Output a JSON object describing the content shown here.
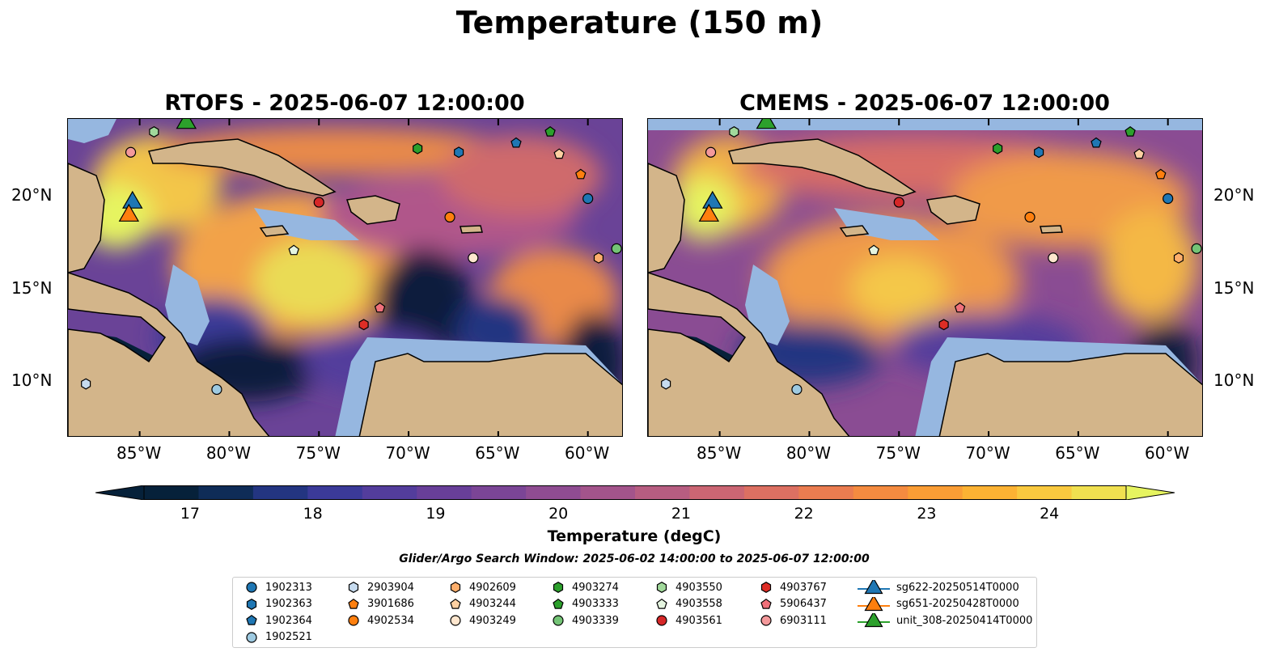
{
  "figure": {
    "title": "Temperature (150 m)",
    "search_window": "Glider/Argo Search Window: 2025-06-02 14:00:00 to 2025-06-07 12:00:00"
  },
  "panels": [
    {
      "id": "rtofs",
      "title": "RTOFS - 2025-06-07 12:00:00"
    },
    {
      "id": "cmems",
      "title": "CMEMS - 2025-06-07 12:00:00"
    }
  ],
  "axes": {
    "lon_ticks": [
      "85°W",
      "80°W",
      "75°W",
      "70°W",
      "65°W",
      "60°W"
    ],
    "lon_values": [
      -85,
      -80,
      -75,
      -70,
      -65,
      -60
    ],
    "lat_ticks": [
      "10°N",
      "15°N",
      "20°N"
    ],
    "lat_values": [
      10,
      15,
      20
    ],
    "lon_range": [
      -89,
      -58
    ],
    "lat_range": [
      7,
      24.2
    ]
  },
  "colorbar": {
    "label": "Temperature (degC)",
    "ticks": [
      "17",
      "18",
      "19",
      "20",
      "21",
      "22",
      "23",
      "24"
    ],
    "tick_values": [
      17,
      18,
      19,
      20,
      21,
      22,
      23,
      24
    ],
    "range": [
      16.6,
      24.6
    ],
    "extend": "both",
    "colors": [
      "#06213a",
      "#0f2c57",
      "#233581",
      "#3b3a99",
      "#533d9c",
      "#683f99",
      "#7b4596",
      "#8f4c92",
      "#a3548b",
      "#b75d81",
      "#cb6673",
      "#dc7062",
      "#ea7c50",
      "#f48b40",
      "#fa9d35",
      "#fcb233",
      "#f9c93f",
      "#f0e050",
      "#e6f460"
    ]
  },
  "map_colors": {
    "land": "#d3b58a",
    "shallow": "#96b7e0",
    "deep_cold": "#06213a"
  },
  "legend": {
    "columns": [
      [
        {
          "label": "1902313",
          "marker": "circle",
          "color": "#1f77b4"
        },
        {
          "label": "1902363",
          "marker": "hexagon",
          "color": "#1f77b4"
        },
        {
          "label": "1902364",
          "marker": "pentagon",
          "color": "#1f77b4"
        },
        {
          "label": "1902521",
          "marker": "circle",
          "color": "#9ecae1"
        }
      ],
      [
        {
          "label": "2903904",
          "marker": "hexagon",
          "color": "#c6dbef"
        },
        {
          "label": "3901686",
          "marker": "pentagon",
          "color": "#ff7f0e"
        },
        {
          "label": "4902534",
          "marker": "circle",
          "color": "#ff7f0e"
        }
      ],
      [
        {
          "label": "4902609",
          "marker": "hexagon",
          "color": "#fdae6b"
        },
        {
          "label": "4903244",
          "marker": "pentagon",
          "color": "#fdd0a2"
        },
        {
          "label": "4903249",
          "marker": "circle",
          "color": "#fee6ce"
        }
      ],
      [
        {
          "label": "4903274",
          "marker": "hexagon",
          "color": "#2ca02c"
        },
        {
          "label": "4903333",
          "marker": "pentagon",
          "color": "#2ca02c"
        },
        {
          "label": "4903339",
          "marker": "circle",
          "color": "#74c476"
        }
      ],
      [
        {
          "label": "4903550",
          "marker": "hexagon",
          "color": "#a1d99b"
        },
        {
          "label": "4903558",
          "marker": "pentagon",
          "color": "#e5f5e0"
        },
        {
          "label": "4903561",
          "marker": "circle",
          "color": "#d62728"
        }
      ],
      [
        {
          "label": "4903767",
          "marker": "hexagon",
          "color": "#de2d26"
        },
        {
          "label": "5906437",
          "marker": "pentagon",
          "color": "#f0707a"
        },
        {
          "label": "6903111",
          "marker": "circle",
          "color": "#f4999b"
        }
      ],
      [
        {
          "label": "sg622-20250514T0000",
          "marker": "triangle",
          "color": "#1f77b4"
        },
        {
          "label": "sg651-20250428T0000",
          "marker": "triangle",
          "color": "#ff7f0e"
        },
        {
          "label": "unit_308-20250414T0000",
          "marker": "triangle",
          "color": "#2ca02c"
        }
      ]
    ]
  },
  "floats": [
    {
      "id": "1902313",
      "lon": -60.0,
      "lat": 19.9
    },
    {
      "id": "1902363",
      "lon": -67.2,
      "lat": 22.4
    },
    {
      "id": "1902364",
      "lon": -64.0,
      "lat": 22.9
    },
    {
      "id": "1902521",
      "lon": -80.7,
      "lat": 9.6
    },
    {
      "id": "2903904",
      "lon": -88.0,
      "lat": 9.9
    },
    {
      "id": "3901686",
      "lon": -60.4,
      "lat": 21.2
    },
    {
      "id": "4902534",
      "lon": -67.7,
      "lat": 18.9
    },
    {
      "id": "4902609",
      "lon": -59.4,
      "lat": 16.7
    },
    {
      "id": "4903244",
      "lon": -61.6,
      "lat": 22.3
    },
    {
      "id": "4903249",
      "lon": -66.4,
      "lat": 16.7
    },
    {
      "id": "4903274",
      "lon": -69.5,
      "lat": 22.6
    },
    {
      "id": "4903333",
      "lon": -62.1,
      "lat": 23.5
    },
    {
      "id": "4903339",
      "lon": -58.4,
      "lat": 17.2
    },
    {
      "id": "4903550",
      "lon": -84.2,
      "lat": 23.5
    },
    {
      "id": "4903558",
      "lon": -76.4,
      "lat": 17.1
    },
    {
      "id": "4903561",
      "lon": -75.0,
      "lat": 19.7
    },
    {
      "id": "4903767",
      "lon": -72.5,
      "lat": 13.1
    },
    {
      "id": "5906437",
      "lon": -71.6,
      "lat": 14.0
    },
    {
      "id": "6903111",
      "lon": -85.5,
      "lat": 22.4
    }
  ],
  "gliders": [
    {
      "id": "sg622-20250514T0000",
      "lon": -85.4,
      "lat": 19.8
    },
    {
      "id": "sg651-20250428T0000",
      "lon": -85.6,
      "lat": 19.1
    },
    {
      "id": "unit_308-20250414T0000",
      "lon": -82.4,
      "lat": 24.1
    }
  ]
}
